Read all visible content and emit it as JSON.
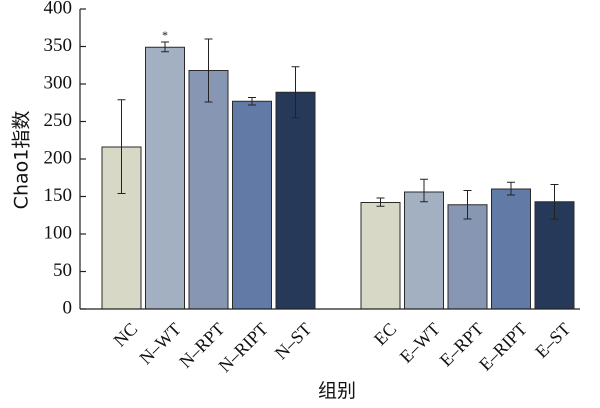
{
  "chart_data": {
    "type": "bar",
    "ylabel": "Chao1指数",
    "xlabel": "组别",
    "ylim": [
      0,
      400
    ],
    "yticks": [
      0,
      50,
      100,
      150,
      200,
      250,
      300,
      350,
      400
    ],
    "grid": false,
    "groups": [
      {
        "bars": [
          {
            "label": "NC",
            "value": 216,
            "err_low": 154,
            "err_high": 279,
            "color": "#d8d8c6"
          },
          {
            "label": "N–WT",
            "value": 349,
            "err_low": 343,
            "err_high": 356,
            "color": "#a3b0c1",
            "marker": "*"
          },
          {
            "label": "N–RPT",
            "value": 318,
            "err_low": 276,
            "err_high": 360,
            "color": "#8796b2"
          },
          {
            "label": "N–RIPT",
            "value": 277,
            "err_low": 272,
            "err_high": 282,
            "color": "#617aa6"
          },
          {
            "label": "N–ST",
            "value": 289,
            "err_low": 255,
            "err_high": 323,
            "color": "#263959"
          }
        ]
      },
      {
        "bars": [
          {
            "label": "EC",
            "value": 142,
            "err_low": 137,
            "err_high": 148,
            "color": "#d8d8c6"
          },
          {
            "label": "E–WT",
            "value": 156,
            "err_low": 143,
            "err_high": 173,
            "color": "#a3b0c1"
          },
          {
            "label": "E–RPT",
            "value": 139,
            "err_low": 120,
            "err_high": 158,
            "color": "#8796b2"
          },
          {
            "label": "E–RIPT",
            "value": 160,
            "err_low": 152,
            "err_high": 169,
            "color": "#617aa6"
          },
          {
            "label": "E–ST",
            "value": 143,
            "err_low": 120,
            "err_high": 166,
            "color": "#263959"
          }
        ]
      }
    ]
  }
}
